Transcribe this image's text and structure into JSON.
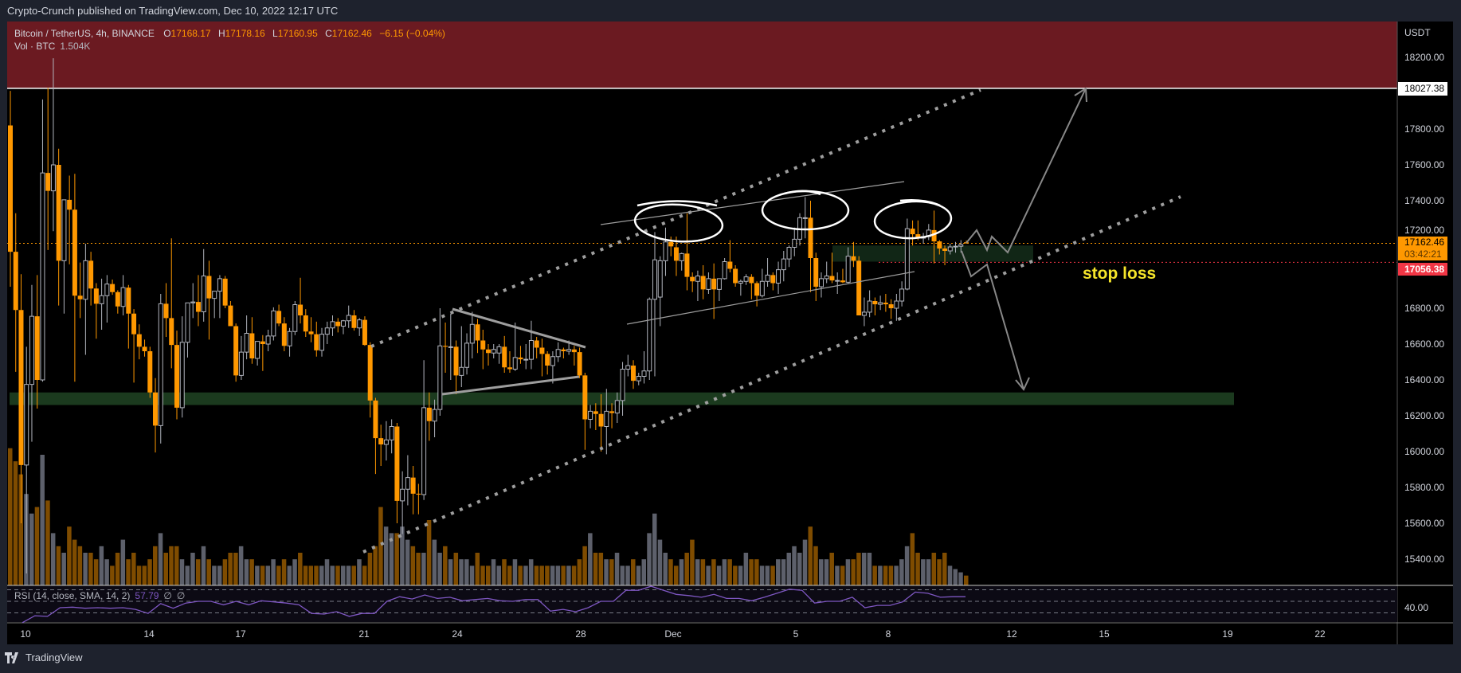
{
  "header": {
    "published": "Crypto-Crunch published on TradingView.com, Dec 10, 2022 12:17 UTC"
  },
  "legend": {
    "symbol": "Bitcoin / TetherUS, 4h, BINANCE",
    "open_label": "O",
    "open": "17168.17",
    "high_label": "H",
    "high": "17178.16",
    "low_label": "L",
    "low": "17160.95",
    "close_label": "C",
    "close": "17162.46",
    "change": "−6.15 (−0.04%)",
    "vol_label": "Vol · BTC",
    "vol_value": "1.504K"
  },
  "price_axis": {
    "currency": "USDT",
    "ticks": [
      "18200.00",
      "17800.00",
      "17600.00",
      "17400.00",
      "17200.00",
      "16800.00",
      "16600.00",
      "16400.00",
      "16200.00",
      "16000.00",
      "15800.00",
      "15600.00",
      "15400.00"
    ],
    "tick_values": [
      18200,
      17800,
      17600,
      17400,
      17200,
      16800,
      16600,
      16400,
      16200,
      16000,
      15800,
      15600,
      15400
    ],
    "resistance_label": "18027.38",
    "resistance_value": 18027.38,
    "last_price_label": "17162.46",
    "last_price_value": 17162.46,
    "countdown": "03:42:21",
    "stop_label": "17056.38",
    "stop_value": 17056.38
  },
  "time_axis": {
    "labels": [
      "10",
      "14",
      "17",
      "21",
      "24",
      "28",
      "Dec",
      "5",
      "8",
      "12",
      "15",
      "19",
      "22"
    ]
  },
  "rsi": {
    "legend": "RSI (14, close, SMA, 14, 2)",
    "value": "57.79",
    "extra1": "∅",
    "extra2": "∅",
    "axis_tick": "40.00",
    "bands": [
      70,
      50,
      30
    ],
    "values": [
      13,
      25,
      24,
      39,
      40,
      38,
      39,
      38,
      39,
      36,
      29,
      46,
      38,
      47,
      50,
      50,
      44,
      50,
      44,
      51,
      49,
      47,
      44,
      29,
      28,
      32,
      24,
      29,
      29,
      50,
      58,
      54,
      61,
      55,
      57,
      51,
      53,
      55,
      51,
      50,
      53,
      53,
      33,
      36,
      32,
      39,
      50,
      50,
      69,
      69,
      76,
      69,
      62,
      60,
      57,
      62,
      55,
      55,
      51,
      57,
      64,
      71,
      69,
      47,
      50,
      50,
      57,
      39,
      43,
      43,
      49,
      66,
      64,
      57,
      58,
      58
    ]
  },
  "annotation": {
    "stop_loss_text": "stop loss"
  },
  "colors": {
    "up_candle": "#b2b5be",
    "down_candle": "#ff9800",
    "up_volume": "#5d606b",
    "down_volume": "#7f4c00",
    "resistance_zone": "#6b1a21",
    "support_zone": "#1b3a1e",
    "entry_zone": "#112616",
    "last_price": "#ff9800",
    "stop": "#f23645",
    "rsi_line": "#7e57c2",
    "stop_text": "#f5e52a"
  },
  "chart_data": {
    "type": "candlestick",
    "interval": "4h",
    "x_range": [
      "2022-11-09",
      "2022-12-10"
    ],
    "candles_ohlc": [
      [
        17820,
        18013,
        16920,
        17115
      ],
      [
        17115,
        17330,
        16445,
        16790
      ],
      [
        16790,
        16990,
        15600,
        15925
      ],
      [
        15925,
        16585,
        15320,
        16375
      ],
      [
        16375,
        16930,
        16055,
        16755
      ],
      [
        16755,
        16985,
        16240,
        16400
      ],
      [
        16400,
        17965,
        16390,
        17555
      ],
      [
        17555,
        18030,
        17125,
        17455
      ],
      [
        17455,
        18195,
        17230,
        17600
      ],
      [
        17600,
        17690,
        16815,
        17065
      ],
      [
        17065,
        17150,
        16770,
        17405
      ],
      [
        17405,
        17540,
        17045,
        17350
      ],
      [
        17350,
        17550,
        16390,
        16870
      ],
      [
        16870,
        17055,
        16745,
        16850
      ],
      [
        16850,
        17160,
        16540,
        17065
      ],
      [
        17065,
        17115,
        16815,
        16910
      ],
      [
        16910,
        16940,
        16630,
        16825
      ],
      [
        16825,
        16965,
        16680,
        16870
      ],
      [
        16870,
        16985,
        16720,
        16935
      ],
      [
        16935,
        16960,
        16875,
        16890
      ],
      [
        16890,
        16900,
        16770,
        16810
      ],
      [
        16810,
        16985,
        16760,
        16915
      ],
      [
        16915,
        16930,
        16575,
        16770
      ],
      [
        16770,
        16795,
        16385,
        16655
      ],
      [
        16655,
        16710,
        16515,
        16585
      ],
      [
        16585,
        16625,
        16530,
        16560
      ],
      [
        16560,
        16585,
        16300,
        16330
      ],
      [
        16330,
        16410,
        15995,
        16145
      ],
      [
        16145,
        16880,
        16045,
        16825
      ],
      [
        16825,
        16940,
        16640,
        16745
      ],
      [
        16745,
        17190,
        16465,
        16595
      ],
      [
        16595,
        16675,
        16180,
        16245
      ],
      [
        16245,
        16755,
        16190,
        16610
      ],
      [
        16610,
        16830,
        16525,
        16830
      ],
      [
        16830,
        16940,
        16745,
        16835
      ],
      [
        16835,
        16985,
        16700,
        16780
      ],
      [
        16780,
        17130,
        16725,
        16980
      ],
      [
        16980,
        17065,
        16625,
        16855
      ],
      [
        16855,
        16895,
        16745,
        16895
      ],
      [
        16895,
        16985,
        16745,
        16965
      ],
      [
        16965,
        16980,
        16800,
        16815
      ],
      [
        16815,
        16840,
        16700,
        16700
      ],
      [
        16700,
        16715,
        16390,
        16425
      ],
      [
        16425,
        16645,
        16400,
        16555
      ],
      [
        16555,
        16760,
        16515,
        16660
      ],
      [
        16660,
        16750,
        16490,
        16520
      ],
      [
        16520,
        16615,
        16480,
        16615
      ],
      [
        16615,
        16650,
        16450,
        16600
      ],
      [
        16600,
        16680,
        16560,
        16645
      ],
      [
        16645,
        16805,
        16620,
        16785
      ],
      [
        16785,
        16820,
        16700,
        16715
      ],
      [
        16715,
        16750,
        16560,
        16590
      ],
      [
        16590,
        16690,
        16530,
        16670
      ],
      [
        16670,
        16840,
        16650,
        16820
      ],
      [
        16820,
        16970,
        16715,
        16760
      ],
      [
        16760,
        16795,
        16640,
        16670
      ],
      [
        16670,
        16750,
        16610,
        16655
      ],
      [
        16655,
        16725,
        16530,
        16565
      ],
      [
        16565,
        16690,
        16530,
        16655
      ],
      [
        16655,
        16725,
        16600,
        16690
      ],
      [
        16690,
        16760,
        16645,
        16725
      ],
      [
        16725,
        16745,
        16665,
        16700
      ],
      [
        16700,
        16735,
        16655,
        16730
      ],
      [
        16730,
        16815,
        16690,
        16760
      ],
      [
        16760,
        16790,
        16675,
        16690
      ],
      [
        16690,
        16745,
        16645,
        16735
      ],
      [
        16735,
        16755,
        16590,
        16595
      ],
      [
        16595,
        16610,
        16190,
        16285
      ],
      [
        16285,
        16300,
        15875,
        16075
      ],
      [
        16075,
        16150,
        15920,
        16040
      ],
      [
        16040,
        16170,
        15950,
        16065
      ],
      [
        16065,
        16180,
        15990,
        16140
      ],
      [
        16140,
        16160,
        15600,
        15725
      ],
      [
        15725,
        15890,
        15540,
        15790
      ],
      [
        15790,
        15980,
        15700,
        15855
      ],
      [
        15855,
        15920,
        15650,
        15765
      ],
      [
        15765,
        15820,
        15650,
        15760
      ],
      [
        15760,
        16510,
        15730,
        16245
      ],
      [
        16245,
        16330,
        16060,
        16170
      ],
      [
        16170,
        16290,
        16080,
        16235
      ],
      [
        16235,
        16800,
        16200,
        16590
      ],
      [
        16590,
        16720,
        16440,
        16585
      ],
      [
        16585,
        16770,
        16400,
        16585
      ],
      [
        16585,
        16620,
        16320,
        16425
      ],
      [
        16425,
        16700,
        16360,
        16470
      ],
      [
        16470,
        16660,
        16430,
        16605
      ],
      [
        16605,
        16780,
        16520,
        16710
      ],
      [
        16710,
        16740,
        16550,
        16620
      ],
      [
        16620,
        16680,
        16460,
        16570
      ],
      [
        16570,
        16600,
        16480,
        16550
      ],
      [
        16550,
        16600,
        16520,
        16570
      ],
      [
        16550,
        16600,
        16490,
        16585
      ],
      [
        16585,
        16645,
        16440,
        16470
      ],
      [
        16470,
        16560,
        16440,
        16460
      ],
      [
        16460,
        16720,
        16450,
        16525
      ],
      [
        16525,
        16590,
        16490,
        16515
      ],
      [
        16515,
        16600,
        16460,
        16515
      ],
      [
        16515,
        16730,
        16460,
        16620
      ],
      [
        16620,
        16640,
        16520,
        16580
      ],
      [
        16580,
        16630,
        16420,
        16545
      ],
      [
        16545,
        16560,
        16430,
        16480
      ],
      [
        16480,
        16560,
        16380,
        16530
      ],
      [
        16530,
        16610,
        16500,
        16570
      ],
      [
        16570,
        16580,
        16520,
        16560
      ],
      [
        16560,
        16620,
        16540,
        16570
      ],
      [
        16570,
        16590,
        16480,
        16555
      ],
      [
        16555,
        16580,
        16410,
        16425
      ],
      [
        16425,
        16440,
        16010,
        16180
      ],
      [
        16180,
        16260,
        16130,
        16225
      ],
      [
        16225,
        16270,
        16120,
        16210
      ],
      [
        16210,
        16320,
        16000,
        16140
      ],
      [
        16140,
        16350,
        15985,
        16225
      ],
      [
        16225,
        16270,
        16130,
        16215
      ],
      [
        16215,
        16330,
        16160,
        16285
      ],
      [
        16285,
        16500,
        16200,
        16460
      ],
      [
        16460,
        16540,
        16420,
        16480
      ],
      [
        16480,
        16510,
        16350,
        16395
      ],
      [
        16395,
        16440,
        16370,
        16420
      ],
      [
        16420,
        16560,
        16380,
        16450
      ],
      [
        16450,
        16860,
        16400,
        16850
      ],
      [
        16850,
        17225,
        16420,
        17070
      ],
      [
        16862,
        17090,
        16700,
        17065
      ],
      [
        17065,
        17250,
        16980,
        17170
      ],
      [
        17170,
        17200,
        17090,
        17145
      ],
      [
        17140,
        17200,
        16980,
        17065
      ],
      [
        17065,
        17110,
        17010,
        17105
      ],
      [
        17105,
        17330,
        16900,
        16975
      ],
      [
        16975,
        17000,
        16890,
        16950
      ],
      [
        16950,
        17010,
        16840,
        16980
      ],
      [
        16980,
        17040,
        16850,
        16905
      ],
      [
        16905,
        17000,
        16880,
        16965
      ],
      [
        16965,
        17050,
        16740,
        16905
      ],
      [
        16905,
        16960,
        16840,
        16965
      ],
      [
        16965,
        17080,
        16960,
        17060
      ],
      [
        17060,
        17180,
        17000,
        17020
      ],
      [
        17020,
        17040,
        16920,
        16940
      ],
      [
        16940,
        16960,
        16870,
        16950
      ],
      [
        16950,
        16990,
        16930,
        16975
      ],
      [
        16975,
        16990,
        16850,
        16940
      ],
      [
        16940,
        16950,
        16810,
        16870
      ],
      [
        16870,
        17020,
        16860,
        16950
      ],
      [
        16950,
        17080,
        16920,
        16985
      ],
      [
        16985,
        17000,
        16900,
        16940
      ],
      [
        16940,
        17060,
        16880,
        17015
      ],
      [
        17015,
        17120,
        16950,
        17075
      ],
      [
        17075,
        17150,
        17030,
        17140
      ],
      [
        17140,
        17250,
        17090,
        17185
      ],
      [
        17185,
        17330,
        17150,
        17305
      ],
      [
        17305,
        17420,
        17190,
        17305
      ],
      [
        17305,
        17400,
        16890,
        17080
      ],
      [
        17080,
        17110,
        16840,
        16920
      ],
      [
        16920,
        17000,
        16860,
        16965
      ],
      [
        16965,
        17060,
        16940,
        16980
      ],
      [
        16980,
        17110,
        16940,
        16955
      ],
      [
        16955,
        17000,
        16880,
        16955
      ],
      [
        16955,
        17020,
        16940,
        16945
      ],
      [
        16945,
        17140,
        16940,
        17090
      ],
      [
        17090,
        17170,
        17030,
        17065
      ],
      [
        17065,
        17090,
        16810,
        16760
      ],
      [
        16760,
        16860,
        16700,
        16778
      ],
      [
        16778,
        16900,
        16750,
        16840
      ],
      [
        16840,
        16860,
        16760,
        16822
      ],
      [
        16822,
        16870,
        16790,
        16831
      ],
      [
        16831,
        16880,
        16780,
        16822
      ],
      [
        16822,
        16850,
        16740,
        16800
      ],
      [
        16800,
        16880,
        16730,
        16840
      ],
      [
        16840,
        16950,
        16810,
        16907
      ],
      [
        16907,
        17300,
        16900,
        17244
      ],
      [
        17244,
        17290,
        17150,
        17213
      ],
      [
        17213,
        17290,
        17180,
        17191
      ],
      [
        17191,
        17220,
        17160,
        17200
      ],
      [
        17200,
        17270,
        17180,
        17236
      ],
      [
        17236,
        17345,
        17050,
        17173
      ],
      [
        17173,
        17180,
        17100,
        17133
      ],
      [
        17133,
        17150,
        17040,
        17120
      ],
      [
        17120,
        17160,
        17100,
        17142
      ],
      [
        17142,
        17170,
        17110,
        17146
      ],
      [
        17146,
        17180,
        17110,
        17155
      ],
      [
        17168,
        17178,
        17160,
        17162
      ]
    ],
    "volume_k_btc": [
      21,
      19,
      17,
      14,
      11,
      12,
      20,
      13,
      8,
      6,
      5,
      9,
      7,
      6,
      5,
      5,
      4,
      6,
      4,
      3,
      5,
      7,
      4,
      5,
      3,
      3,
      4,
      6,
      8,
      5,
      6,
      6,
      4,
      3,
      5,
      4,
      6,
      4,
      3,
      3,
      4,
      5,
      5,
      6,
      4,
      4,
      3,
      3,
      3,
      4,
      3,
      4,
      3,
      4,
      5,
      3,
      3,
      3,
      3,
      4,
      3,
      3,
      3,
      3,
      3,
      4,
      3,
      5,
      6,
      12,
      9,
      8,
      8,
      9,
      7,
      6,
      5,
      5,
      10,
      7,
      5,
      6,
      4,
      5,
      4,
      4,
      3,
      5,
      3,
      3,
      4,
      3,
      4,
      3,
      4,
      3,
      3,
      4,
      3,
      3,
      3,
      3,
      3,
      3,
      3,
      3,
      4,
      6,
      8,
      5,
      5,
      4,
      4,
      5,
      3,
      3,
      4,
      3,
      4,
      8,
      11,
      7,
      5,
      4,
      3,
      4,
      5,
      7,
      4,
      4,
      3,
      4,
      3,
      4,
      4,
      3,
      3,
      5,
      4,
      4,
      3,
      3,
      3,
      4,
      4,
      5,
      6,
      5,
      7,
      9,
      6,
      4,
      4,
      5,
      3,
      3,
      4,
      4,
      5,
      5,
      5,
      3,
      3,
      3,
      3,
      3,
      4,
      6,
      8,
      5,
      4,
      4,
      5,
      4,
      5,
      3,
      2.5,
      2,
      1.504
    ],
    "zones": {
      "resistance": [
        18027.38,
        18400
      ],
      "support": [
        16260,
        16330
      ],
      "entry": [
        17060,
        17150
      ]
    },
    "y_range": [
      15300,
      18400
    ]
  }
}
